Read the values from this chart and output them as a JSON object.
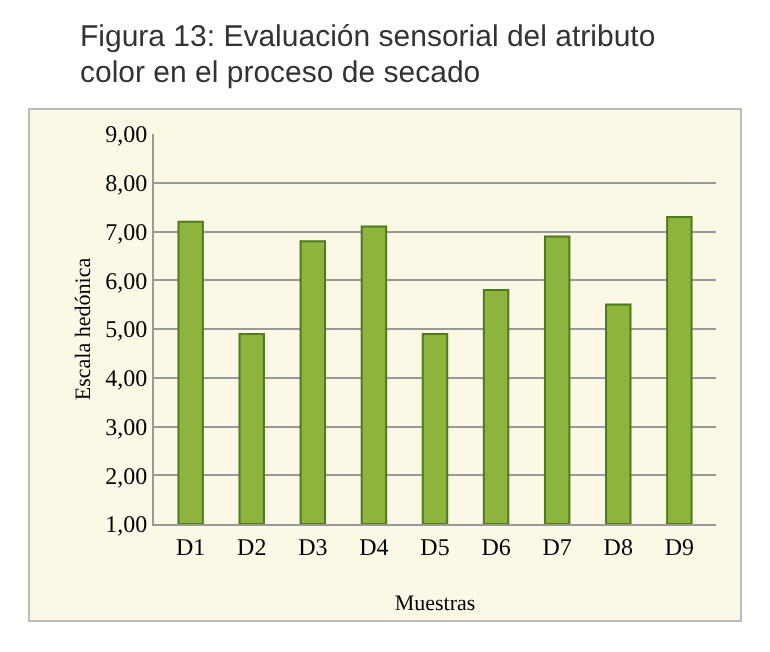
{
  "chart_data": {
    "type": "bar",
    "title": "Figura 13: Evaluación sensorial del atributo color en el proceso de secado",
    "xlabel": "Muestras",
    "ylabel": "Escala hedónica",
    "categories": [
      "D1",
      "D2",
      "D3",
      "D4",
      "D5",
      "D6",
      "D7",
      "D8",
      "D9"
    ],
    "values": [
      7.2,
      4.9,
      6.8,
      7.1,
      4.9,
      5.8,
      6.9,
      5.5,
      7.3
    ],
    "color": "#8db43c",
    "ylim": [
      1,
      9
    ],
    "yticks": [
      {
        "value": 1,
        "label": "1,00"
      },
      {
        "value": 2,
        "label": "2,00"
      },
      {
        "value": 3,
        "label": "3,00"
      },
      {
        "value": 4,
        "label": "4,00"
      },
      {
        "value": 5,
        "label": "5,00"
      },
      {
        "value": 6,
        "label": "6,00"
      },
      {
        "value": 7,
        "label": "7,00"
      },
      {
        "value": 8,
        "label": "8,00"
      },
      {
        "value": 9,
        "label": "9,00"
      }
    ],
    "grid": "y"
  }
}
